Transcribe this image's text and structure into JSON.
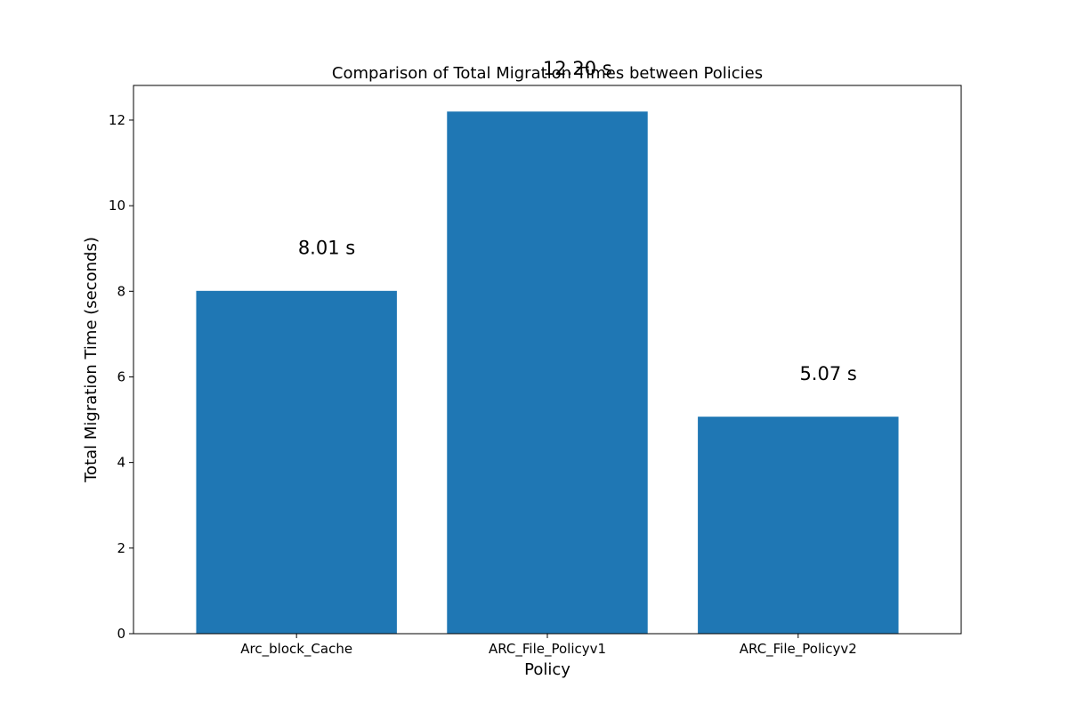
{
  "chart_data": {
    "type": "bar",
    "title": "Comparison of Total Migration Times between Policies",
    "xlabel": "Policy",
    "ylabel": "Total Migration Time (seconds)",
    "categories": [
      "Arc_block_Cache",
      "ARC_File_Policyv1",
      "ARC_File_Policyv2"
    ],
    "values": [
      8.01,
      12.2,
      5.07
    ],
    "data_labels": [
      "8.01 s",
      "12.20 s",
      "5.07 s"
    ],
    "ylim": [
      0,
      12.81
    ],
    "yticks": [
      0,
      2,
      4,
      6,
      8,
      10,
      12
    ],
    "bar_color": "#1f77b4",
    "grid": false
  }
}
